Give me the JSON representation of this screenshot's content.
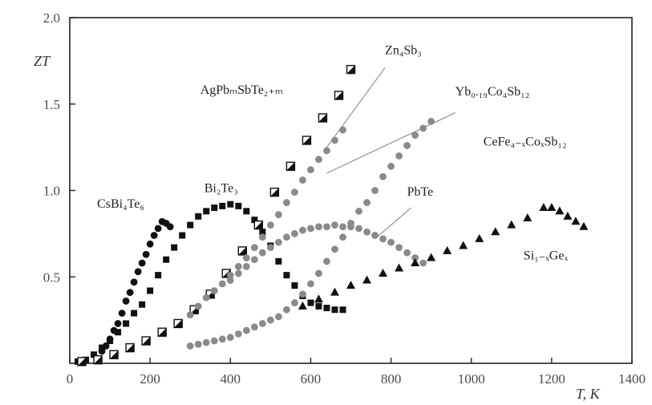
{
  "chart_data": {
    "type": "scatter",
    "ylabel": "ZT",
    "xlabel": "T, K",
    "xlim": [
      0,
      1400
    ],
    "ylim": [
      0,
      2.0
    ],
    "x_ticks": [
      "0",
      "200",
      "400",
      "600",
      "800",
      "1000",
      "1200",
      "1400"
    ],
    "y_ticks": [
      "0.5",
      "1.0",
      "1.5",
      "2.0"
    ],
    "grid": false,
    "colors": {
      "black": "#111111",
      "gray": "#8a8a8a",
      "frame": "#222222"
    },
    "annotations": [
      {
        "text": "CsBi₄Te₆",
        "x": 68,
        "y": 0.9
      },
      {
        "text": "Bi₂Te₃",
        "x": 335,
        "y": 0.99
      },
      {
        "text": "AgPbₘSbTe₂₊ₘ",
        "x": 325,
        "y": 1.56
      },
      {
        "text": "Zn₄Sb₃",
        "x": 785,
        "y": 1.79
      },
      {
        "text": "Yb₀.₁₉Co₄Sb₁₂",
        "x": 960,
        "y": 1.55
      },
      {
        "text": "CeFe₄₋ₓCoₓSb₁₂",
        "x": 1030,
        "y": 1.26
      },
      {
        "text": "PbTe",
        "x": 840,
        "y": 0.97
      },
      {
        "text": "Si₁₋ₓGeₓ",
        "x": 1130,
        "y": 0.6
      }
    ],
    "leaders": [
      {
        "from": [
          785,
          1.71
        ],
        "to": [
          640,
          1.25
        ]
      },
      {
        "from": [
          960,
          1.45
        ],
        "to": [
          640,
          1.1
        ]
      },
      {
        "from": [
          850,
          0.9
        ],
        "to": [
          760,
          0.72
        ]
      }
    ],
    "series": [
      {
        "name": "CsBi₄Te₆",
        "marker": "circle",
        "color": "black",
        "x": [
          80,
          90,
          100,
          110,
          120,
          130,
          140,
          150,
          160,
          170,
          180,
          190,
          200,
          210,
          220,
          230,
          240,
          250
        ],
        "y": [
          0.07,
          0.1,
          0.14,
          0.19,
          0.23,
          0.29,
          0.36,
          0.41,
          0.47,
          0.53,
          0.58,
          0.63,
          0.69,
          0.74,
          0.78,
          0.82,
          0.81,
          0.79
        ]
      },
      {
        "name": "Bi₂Te₃",
        "marker": "square",
        "color": "black",
        "x": [
          20,
          40,
          60,
          80,
          100,
          120,
          140,
          160,
          180,
          200,
          220,
          240,
          260,
          280,
          300,
          320,
          340,
          360,
          380,
          400,
          420,
          440,
          460,
          480,
          500,
          520,
          540,
          560,
          580,
          600,
          620,
          640,
          660,
          680
        ],
        "y": [
          0.01,
          0.02,
          0.05,
          0.09,
          0.13,
          0.18,
          0.23,
          0.29,
          0.34,
          0.42,
          0.51,
          0.6,
          0.67,
          0.74,
          0.8,
          0.85,
          0.88,
          0.9,
          0.91,
          0.92,
          0.91,
          0.88,
          0.83,
          0.76,
          0.68,
          0.59,
          0.51,
          0.45,
          0.39,
          0.35,
          0.33,
          0.32,
          0.31,
          0.31
        ]
      },
      {
        "name": "AgPbₘSbTe₂₊ₘ",
        "marker": "half-square",
        "color": "black",
        "x": [
          30,
          70,
          110,
          150,
          190,
          230,
          270,
          310,
          350,
          390,
          430,
          470,
          510,
          550,
          590,
          630,
          670,
          700
        ],
        "y": [
          0.01,
          0.02,
          0.05,
          0.09,
          0.13,
          0.18,
          0.23,
          0.31,
          0.4,
          0.52,
          0.65,
          0.8,
          0.99,
          1.14,
          1.29,
          1.42,
          1.55,
          1.7
        ]
      },
      {
        "name": "Zn₄Sb₃",
        "marker": "circle",
        "color": "gray",
        "x": [
          300,
          320,
          340,
          360,
          380,
          400,
          420,
          440,
          460,
          480,
          500,
          520,
          540,
          560,
          580,
          600,
          620,
          640,
          660,
          680
        ],
        "y": [
          0.28,
          0.33,
          0.38,
          0.42,
          0.46,
          0.51,
          0.56,
          0.61,
          0.67,
          0.73,
          0.8,
          0.86,
          0.93,
          0.99,
          1.06,
          1.12,
          1.18,
          1.23,
          1.29,
          1.35
        ]
      },
      {
        "name": "CeFe₄₋ₓCoₓSb₁₂",
        "marker": "circle",
        "color": "gray",
        "x": [
          300,
          320,
          340,
          360,
          380,
          400,
          420,
          440,
          460,
          480,
          500,
          520,
          540,
          560,
          580,
          600,
          620,
          640,
          660,
          680,
          700,
          720,
          740,
          760,
          780,
          800,
          820,
          840,
          860,
          880,
          900
        ],
        "y": [
          0.1,
          0.11,
          0.12,
          0.13,
          0.14,
          0.15,
          0.17,
          0.19,
          0.21,
          0.23,
          0.25,
          0.27,
          0.31,
          0.35,
          0.4,
          0.46,
          0.52,
          0.59,
          0.66,
          0.73,
          0.81,
          0.88,
          0.93,
          1.0,
          1.08,
          1.14,
          1.2,
          1.26,
          1.32,
          1.36,
          1.4
        ]
      },
      {
        "name": "PbTe",
        "marker": "circle",
        "color": "gray",
        "x": [
          400,
          420,
          440,
          460,
          480,
          500,
          520,
          540,
          560,
          580,
          600,
          620,
          640,
          660,
          680,
          700,
          720,
          740,
          760,
          780,
          800,
          820,
          840,
          860,
          880
        ],
        "y": [
          0.48,
          0.52,
          0.56,
          0.6,
          0.64,
          0.67,
          0.7,
          0.73,
          0.75,
          0.77,
          0.78,
          0.79,
          0.79,
          0.8,
          0.79,
          0.79,
          0.78,
          0.76,
          0.74,
          0.72,
          0.7,
          0.67,
          0.64,
          0.61,
          0.58
        ]
      },
      {
        "name": "Si₁₋ₓGeₓ",
        "marker": "triangle",
        "color": "black",
        "x": [
          580,
          620,
          660,
          700,
          740,
          780,
          820,
          860,
          900,
          940,
          980,
          1020,
          1060,
          1100,
          1140,
          1180,
          1200,
          1220,
          1240,
          1260,
          1280
        ],
        "y": [
          0.33,
          0.37,
          0.41,
          0.45,
          0.48,
          0.52,
          0.55,
          0.58,
          0.61,
          0.65,
          0.68,
          0.72,
          0.76,
          0.8,
          0.84,
          0.9,
          0.9,
          0.88,
          0.85,
          0.82,
          0.79
        ]
      }
    ]
  }
}
